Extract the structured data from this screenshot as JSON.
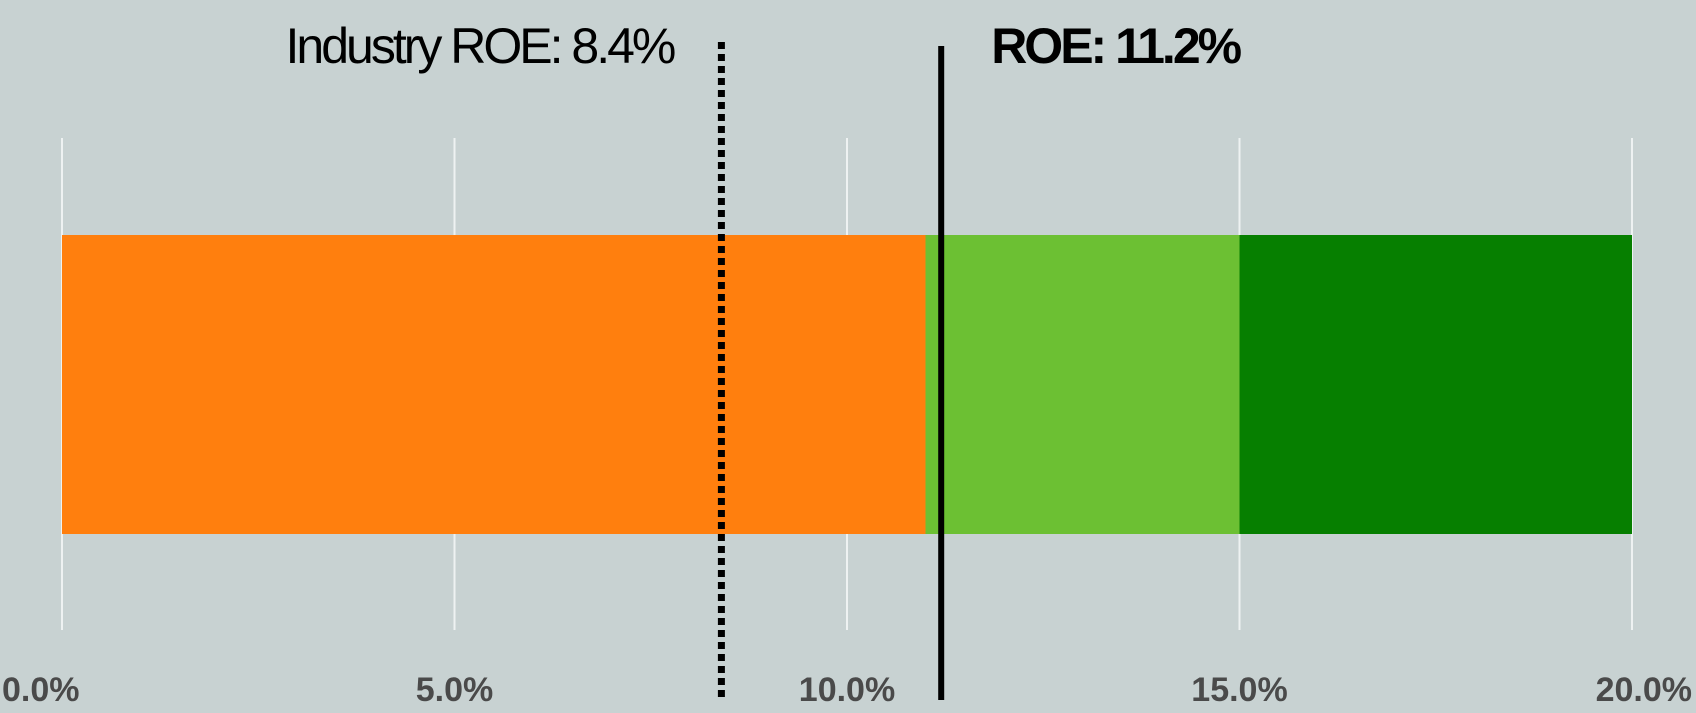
{
  "chart_data": {
    "type": "bullet",
    "segments": [
      {
        "color": "#ff7f0e",
        "value": 11
      },
      {
        "color": "#6cc033",
        "value": 4
      },
      {
        "color": "#067f00",
        "value": 5
      }
    ],
    "markers": [
      {
        "label": "Industry ROE: 8.4%",
        "value": 8.4,
        "style": "dotted"
      },
      {
        "label": "ROE: 11.2%",
        "value": 11.2,
        "style": "solid"
      }
    ],
    "xlim": [
      0,
      20
    ],
    "xticks": [
      {
        "value": 0,
        "label": "0.0%"
      },
      {
        "value": 5,
        "label": "5.0%"
      },
      {
        "value": 10,
        "label": "10.0%"
      },
      {
        "value": 15,
        "label": "15.0%"
      },
      {
        "value": 20,
        "label": "20.0%"
      }
    ],
    "grid": true
  }
}
